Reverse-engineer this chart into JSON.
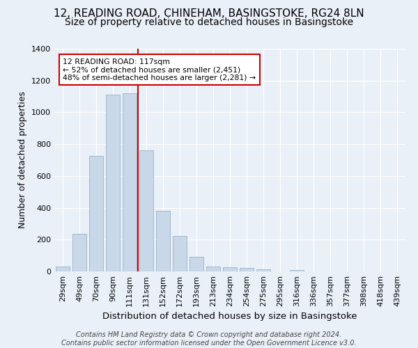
{
  "title": "12, READING ROAD, CHINEHAM, BASINGSTOKE, RG24 8LN",
  "subtitle": "Size of property relative to detached houses in Basingstoke",
  "xlabel": "Distribution of detached houses by size in Basingstoke",
  "ylabel": "Number of detached properties",
  "categories": [
    "29sqm",
    "49sqm",
    "70sqm",
    "90sqm",
    "111sqm",
    "131sqm",
    "152sqm",
    "172sqm",
    "193sqm",
    "213sqm",
    "234sqm",
    "254sqm",
    "275sqm",
    "295sqm",
    "316sqm",
    "336sqm",
    "357sqm",
    "377sqm",
    "398sqm",
    "418sqm",
    "439sqm"
  ],
  "values": [
    32,
    235,
    725,
    1110,
    1120,
    760,
    380,
    225,
    90,
    30,
    25,
    20,
    15,
    0,
    10,
    0,
    0,
    0,
    0,
    0,
    0
  ],
  "bar_color": "#c8d8e8",
  "bar_edge_color": "#a0b8cc",
  "vline_x": 4.5,
  "vline_color": "#cc0000",
  "annotation_line1": "12 READING ROAD: 117sqm",
  "annotation_line2": "← 52% of detached houses are smaller (2,451)",
  "annotation_line3": "48% of semi-detached houses are larger (2,281) →",
  "annotation_box_color": "#ffffff",
  "annotation_box_edge": "#cc0000",
  "footer_text": "Contains HM Land Registry data © Crown copyright and database right 2024.\nContains public sector information licensed under the Open Government Licence v3.0.",
  "ylim": [
    0,
    1400
  ],
  "yticks": [
    0,
    200,
    400,
    600,
    800,
    1000,
    1200,
    1400
  ],
  "background_color": "#eaf0f8",
  "grid_color": "#ffffff",
  "title_fontsize": 11,
  "subtitle_fontsize": 10,
  "xlabel_fontsize": 9.5,
  "ylabel_fontsize": 9,
  "tick_fontsize": 8,
  "footer_fontsize": 7
}
